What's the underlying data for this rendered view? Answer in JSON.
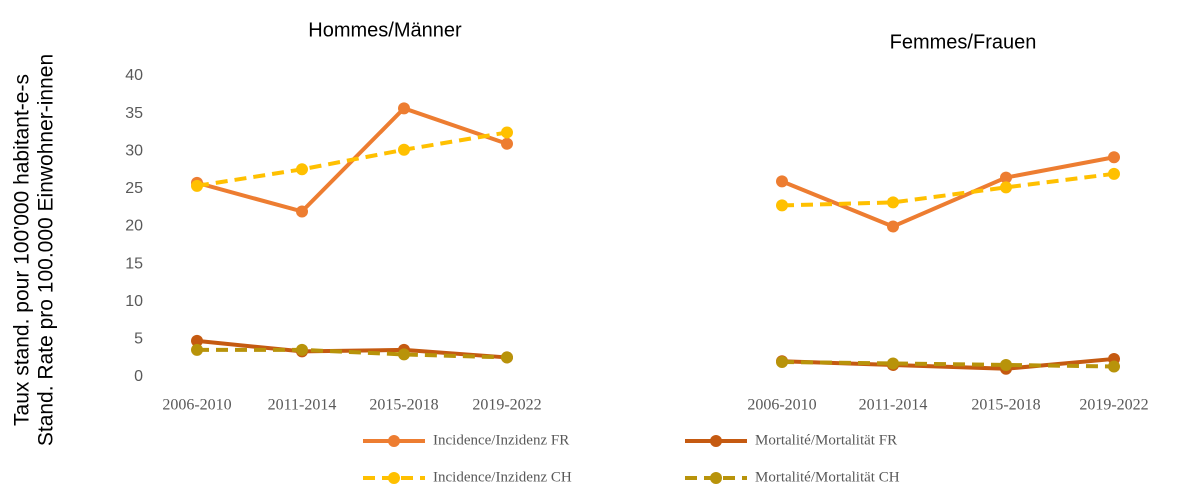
{
  "chart_data": {
    "type": "line",
    "ylabel": [
      "Taux stand. pour 100'000 habitant-e-s",
      "Stand. Rate pro 100.000 Einwohner-innen"
    ],
    "ylim": [
      0,
      40
    ],
    "yticks": [
      0,
      5,
      10,
      15,
      20,
      25,
      30,
      35,
      40
    ],
    "categories": [
      "2006-2010",
      "2011-2014",
      "2015-2018",
      "2019-2022"
    ],
    "series": [
      {
        "name": "Incidence/Inzidenz FR",
        "color": "#ed7d31",
        "dashed": false
      },
      {
        "name": "Mortalité/Mortalität FR",
        "color": "#c55a11",
        "dashed": false
      },
      {
        "name": "Incidence/Inzidenz CH",
        "color": "#ffc000",
        "dashed": true
      },
      {
        "name": "Mortalité/Mortalität CH",
        "color": "#b8930a",
        "dashed": true
      }
    ],
    "panels": [
      {
        "title": "Hommes/Männer",
        "values": [
          [
            25.8,
            22,
            35.7,
            31
          ],
          [
            4.8,
            3.4,
            3.6,
            2.6
          ],
          [
            25.4,
            27.6,
            30.2,
            32.5
          ],
          [
            3.6,
            3.6,
            3,
            2.6
          ]
        ]
      },
      {
        "title": "Femmes/Frauen",
        "values": [
          [
            26,
            20,
            26.5,
            29.2
          ],
          [
            2.1,
            1.6,
            1.1,
            2.4
          ],
          [
            22.8,
            23.2,
            25.2,
            27
          ],
          [
            2,
            1.8,
            1.6,
            1.4
          ]
        ]
      }
    ]
  }
}
